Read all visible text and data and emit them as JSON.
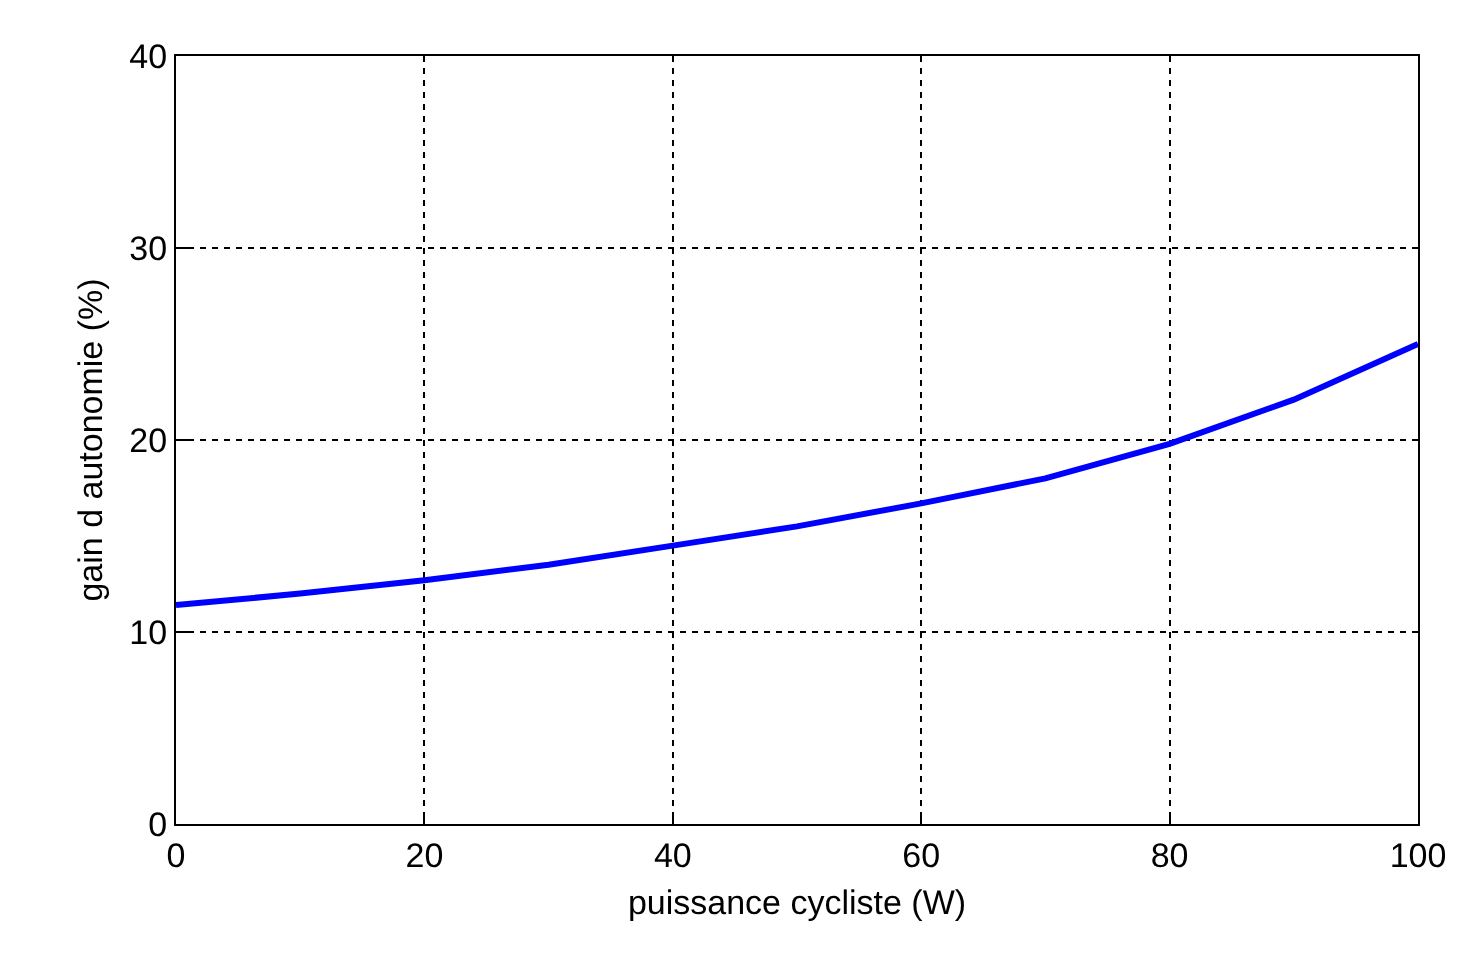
{
  "chart_data": {
    "type": "line",
    "xlabel": "puissance cycliste (W)",
    "ylabel": "gain d autonomie (%)",
    "x": [
      0,
      10,
      20,
      30,
      40,
      50,
      60,
      70,
      80,
      90,
      100
    ],
    "series": [
      {
        "color": "#0000ff",
        "values": [
          11.4,
          12.0,
          12.7,
          13.5,
          14.5,
          15.5,
          16.7,
          18.0,
          19.8,
          22.1,
          25.0
        ]
      }
    ],
    "xlim": [
      0,
      100
    ],
    "xticks": [
      0,
      20,
      40,
      60,
      80,
      100
    ],
    "ylim": [
      0,
      40
    ],
    "yticks": [
      0,
      10,
      20,
      30,
      40
    ],
    "grid": true,
    "line_style": "solid",
    "marker": "none"
  }
}
